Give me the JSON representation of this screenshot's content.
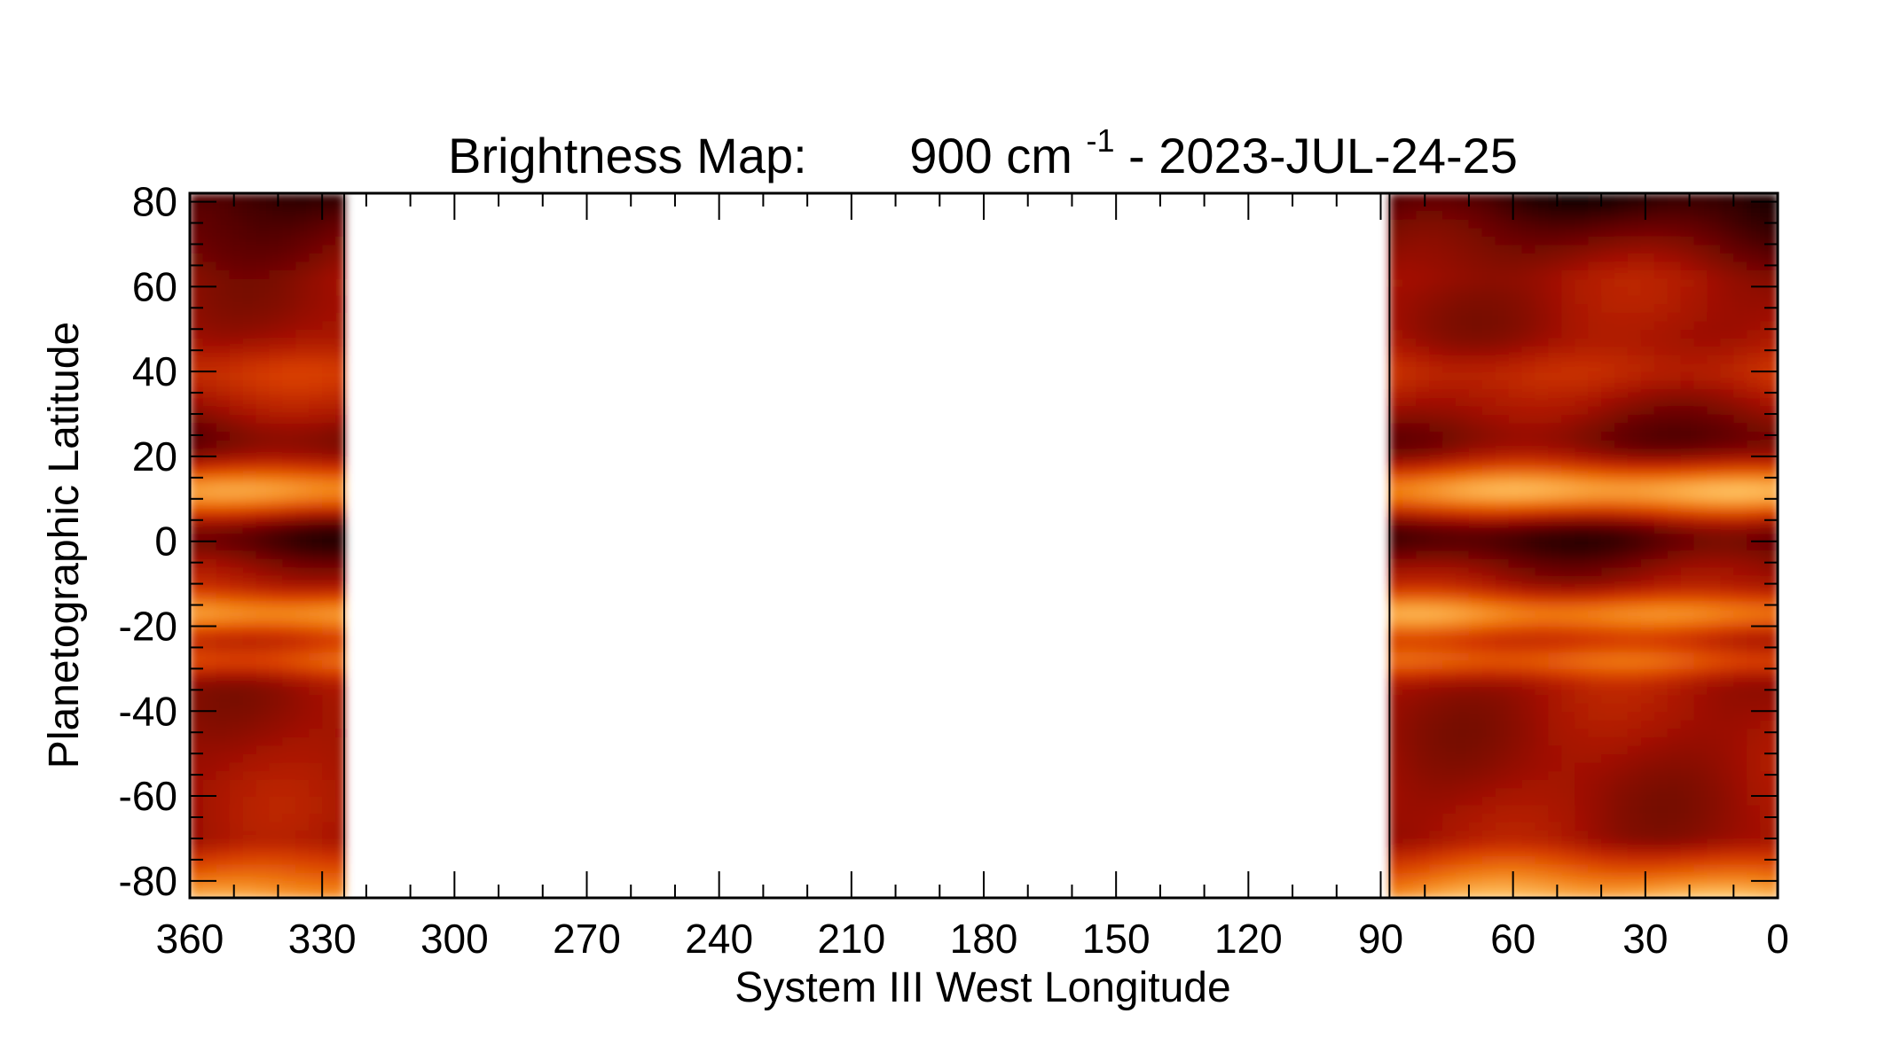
{
  "chart_data": {
    "type": "heatmap",
    "title": {
      "prefix": "Brightness Map:",
      "wavenumber": "900 cm",
      "superscript": "-1",
      "suffix": " - 2023-JUL-24-25"
    },
    "xlabel": "System III West Longitude",
    "ylabel": "Planetographic Latitude",
    "xlim": [
      360,
      0
    ],
    "ylim": [
      -84,
      82
    ],
    "x_ticks": [
      "360",
      "330",
      "300",
      "270",
      "240",
      "210",
      "180",
      "150",
      "120",
      "90",
      "60",
      "30",
      "0"
    ],
    "y_ticks": [
      "80",
      "60",
      "40",
      "20",
      "0",
      "-20",
      "-40",
      "-60",
      "-80"
    ],
    "colormap": [
      "#000000",
      "#5a0000",
      "#a41200",
      "#d63c00",
      "#f07a10",
      "#ffc060",
      "#fff0c0"
    ],
    "coverage_regions": [
      {
        "lon_start": 360,
        "lon_end": 325,
        "lat_min": -84,
        "lat_max": 82
      },
      {
        "lon_start": 88,
        "lon_end": 0,
        "lat_min": -84,
        "lat_max": 82
      }
    ],
    "bands": [
      {
        "lat": 12,
        "width": 6,
        "level": 0.82
      },
      {
        "lat": -17,
        "width": 5,
        "level": 0.75
      },
      {
        "lat": -28,
        "width": 4,
        "level": 0.6
      },
      {
        "lat": 40,
        "width": 6,
        "level": 0.45
      },
      {
        "lat": 1,
        "width": 6,
        "level": 0.12
      },
      {
        "lat": 24,
        "width": 6,
        "level": 0.2
      }
    ]
  }
}
